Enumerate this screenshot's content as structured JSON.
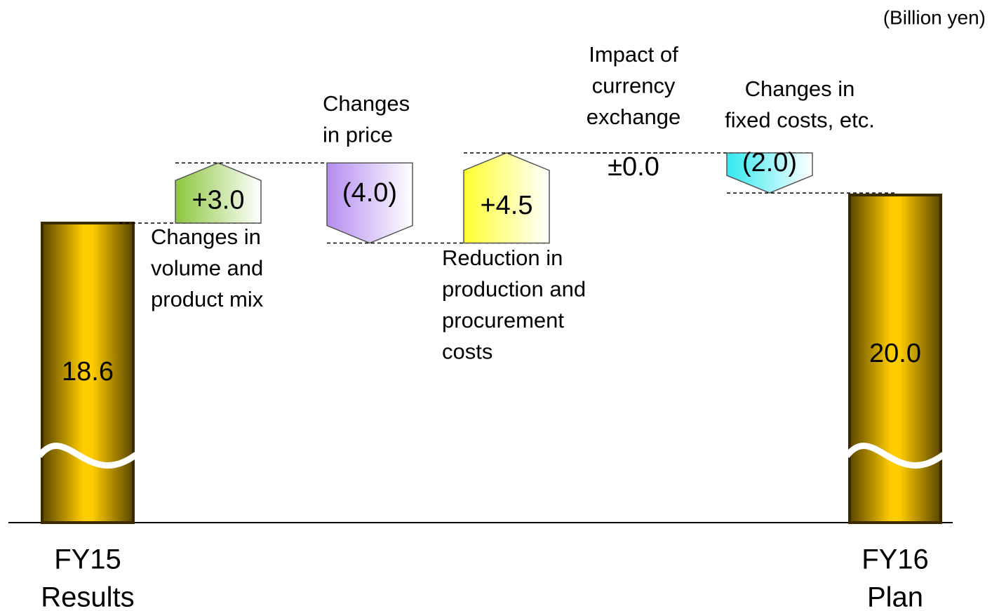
{
  "chart_data": {
    "type": "waterfall",
    "unit_label": "(Billion yen)",
    "categories": [
      [
        "FY15",
        "Results"
      ],
      [
        "Changes in",
        "volume and",
        "product mix"
      ],
      [
        "Changes",
        "in price"
      ],
      [
        "Reduction in",
        "production and",
        "procurement",
        "costs"
      ],
      [
        "Impact of",
        "currency",
        "exchange"
      ],
      [
        "Changes in",
        "fixed costs, etc."
      ],
      [
        "FY16",
        "Plan"
      ]
    ],
    "values": [
      18.6,
      3.0,
      -4.0,
      4.5,
      0.0,
      -2.0,
      20.0
    ],
    "value_labels": [
      "18.6",
      "+3.0",
      "(4.0)",
      "+4.5",
      "±0.0",
      "(2.0)",
      "20.0"
    ],
    "totals": [
      true,
      false,
      false,
      false,
      false,
      false,
      true
    ],
    "colors": [
      "#ffcc00",
      "#8dc63f",
      "#b58cf0",
      "#ffff33",
      null,
      "#33e8f0",
      "#ffcc00"
    ],
    "ylim": [
      14,
      24
    ],
    "broken_axis": true
  }
}
